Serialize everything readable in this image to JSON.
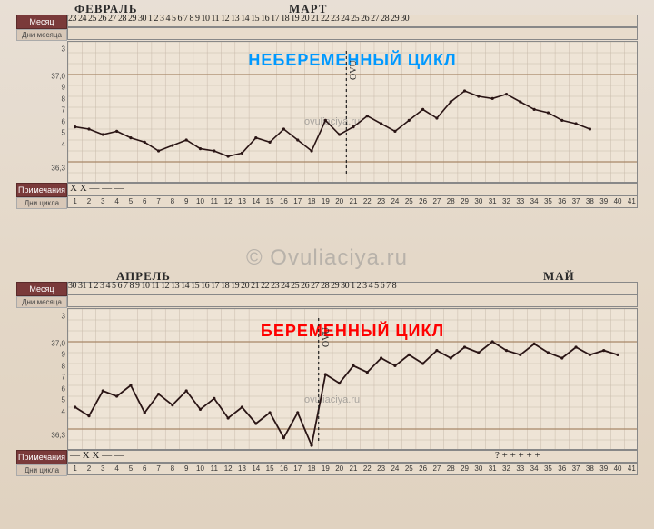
{
  "labels": {
    "month": "Месяц",
    "month_days": "Дни месяца",
    "notes": "Примечания",
    "cycle_days": "Дни цикла"
  },
  "chart1": {
    "title": "НЕБЕРЕМЕННЫЙ ЦИКЛ",
    "title_color": "#0099ff",
    "month_left": "ФЕВРАЛЬ",
    "month_right": "МАРТ",
    "hand_days": "23 24 25 26 27 28 29 30  1  2   3   4   5   6   7   8   9  10   11  12 13 14 15 16 17 18 19 20 21 22 23 24 25 26 27 28 29 30",
    "y_axis": {
      "labels": [
        "3",
        "37,0",
        "9",
        "8",
        "7",
        "6",
        "5",
        "4",
        "36,3"
      ],
      "positions_pct": [
        6,
        25,
        33,
        41,
        49,
        57,
        65,
        73,
        90
      ],
      "major_color": "#a88868",
      "minor_color": "#c8baaa"
    },
    "series": {
      "color": "#2a1515",
      "width": 1.6,
      "y_min": 36.0,
      "y_max": 37.3,
      "values": [
        36.52,
        36.5,
        36.45,
        36.48,
        36.42,
        36.38,
        36.3,
        36.35,
        36.4,
        36.32,
        36.3,
        36.25,
        36.28,
        36.42,
        36.38,
        36.5,
        36.4,
        36.3,
        36.58,
        36.45,
        36.52,
        36.62,
        36.55,
        36.48,
        36.58,
        36.68,
        36.6,
        36.75,
        36.85,
        36.8,
        36.78,
        36.82,
        36.75,
        36.68,
        36.65,
        36.58,
        36.55,
        36.5
      ],
      "ovu_col": 20
    },
    "notes_hand": "X X — — —",
    "cycle_days": 41
  },
  "chart2": {
    "title": "БЕРЕМЕННЫЙ ЦИКЛ",
    "title_color": "#ff0000",
    "month_left": "АПРЕЛЬ",
    "month_right": "МАЙ",
    "hand_days": "30 31  1   2   3   4   5   6   7   8   9  10  11  12  13 14 15 16 17 18 19 20 21 22 23 24 25 26 27 28 29 30  1  2  3  4  5  6  7  8",
    "y_axis": {
      "labels": [
        "3",
        "37,0",
        "9",
        "8",
        "7",
        "6",
        "5",
        "4",
        "36,3"
      ],
      "positions_pct": [
        6,
        25,
        33,
        41,
        49,
        57,
        65,
        73,
        90
      ],
      "major_color": "#a88868",
      "minor_color": "#c8baaa"
    },
    "series": {
      "color": "#2a1515",
      "width": 1.8,
      "y_min": 36.0,
      "y_max": 37.3,
      "values": [
        36.4,
        36.32,
        36.55,
        36.5,
        36.6,
        36.35,
        36.52,
        36.42,
        36.55,
        36.38,
        36.48,
        36.3,
        36.4,
        36.25,
        36.35,
        36.12,
        36.35,
        36.05,
        36.7,
        36.62,
        36.78,
        36.72,
        36.85,
        36.78,
        36.88,
        36.8,
        36.92,
        36.85,
        36.95,
        36.9,
        37.0,
        36.92,
        36.88,
        36.98,
        36.9,
        36.85,
        36.95,
        36.88,
        36.92,
        36.88
      ],
      "ovu_col": 18
    },
    "notes_hand_left": "— X X — —",
    "notes_hand_right": "?    + + + + +",
    "cycle_days": 41
  },
  "watermark": {
    "big": "© Ovuliaciya.ru",
    "small": "ovuliaciya.ru"
  },
  "colors": {
    "header_bg": "#7a3a3a",
    "header_text": "#ffffff",
    "grid_bg": "#eee4d6"
  }
}
